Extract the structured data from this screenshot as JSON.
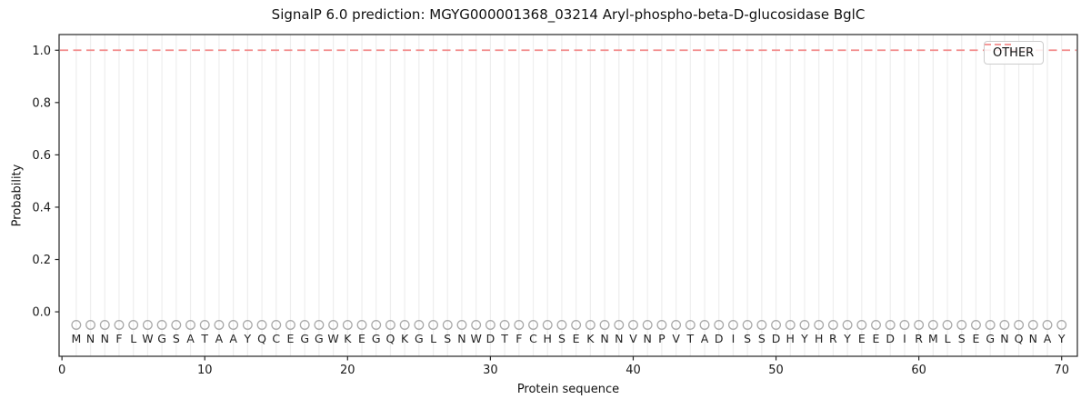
{
  "figure": {
    "title": "SignalP 6.0 prediction: MGYG000001368_03214 Aryl-phospho-beta-D-glucosidase BglC",
    "xlabel": "Protein sequence",
    "ylabel": "Probability",
    "legend": {
      "position": "upper right",
      "entries": [
        {
          "label": "OTHER",
          "color": "#f28b8b",
          "line_style": "dashed"
        }
      ]
    }
  },
  "chart_data": {
    "type": "line",
    "title": "SignalP 6.0 prediction: MGYG000001368_03214 Aryl-phospho-beta-D-glucosidase BglC",
    "xlabel": "Protein sequence",
    "ylabel": "Probability",
    "xlim": [
      -0.2,
      71.1
    ],
    "ylim": [
      -0.17,
      1.06
    ],
    "xticks": [
      0,
      10,
      20,
      30,
      40,
      50,
      60,
      70
    ],
    "yticks": [
      0.0,
      0.2,
      0.4,
      0.6,
      0.8,
      1.0
    ],
    "grid": "light vertical gridline at each residue position, no horizontal gridlines",
    "legend_position": "upper right",
    "sequence": "MNNFLWGSATAAYQCEGGWKEGQKGLSNWDTFCHSEKNNVNPVTADISSDHYHRYEEDIRMLSEGNQNAY",
    "sequence_marker": "open-circle",
    "sequence_marker_y": -0.05,
    "x": [
      1,
      2,
      3,
      4,
      5,
      6,
      7,
      8,
      9,
      10,
      11,
      12,
      13,
      14,
      15,
      16,
      17,
      18,
      19,
      20,
      21,
      22,
      23,
      24,
      25,
      26,
      27,
      28,
      29,
      30,
      31,
      32,
      33,
      34,
      35,
      36,
      37,
      38,
      39,
      40,
      41,
      42,
      43,
      44,
      45,
      46,
      47,
      48,
      49,
      50,
      51,
      52,
      53,
      54,
      55,
      56,
      57,
      58,
      59,
      60,
      61,
      62,
      63,
      64,
      65,
      66,
      67,
      68,
      69,
      70
    ],
    "series": [
      {
        "name": "OTHER",
        "color": "#f28b8b",
        "line_style": "dashed",
        "values": [
          1.0,
          1.0,
          1.0,
          1.0,
          1.0,
          1.0,
          1.0,
          1.0,
          1.0,
          1.0,
          1.0,
          1.0,
          1.0,
          1.0,
          1.0,
          1.0,
          1.0,
          1.0,
          1.0,
          1.0,
          1.0,
          1.0,
          1.0,
          1.0,
          1.0,
          1.0,
          1.0,
          1.0,
          1.0,
          1.0,
          1.0,
          1.0,
          1.0,
          1.0,
          1.0,
          1.0,
          1.0,
          1.0,
          1.0,
          1.0,
          1.0,
          1.0,
          1.0,
          1.0,
          1.0,
          1.0,
          1.0,
          1.0,
          1.0,
          1.0,
          1.0,
          1.0,
          1.0,
          1.0,
          1.0,
          1.0,
          1.0,
          1.0,
          1.0,
          1.0,
          1.0,
          1.0,
          1.0,
          1.0,
          1.0,
          1.0,
          1.0,
          1.0,
          1.0,
          1.0
        ]
      }
    ]
  },
  "colors": {
    "other_line": "#f28b8b",
    "grid": "#eeeeee",
    "marker_stroke": "#a9a9a9",
    "residue_text": "#222222",
    "frame": "#262626",
    "legend_border": "#cccccc",
    "background": "#ffffff"
  }
}
